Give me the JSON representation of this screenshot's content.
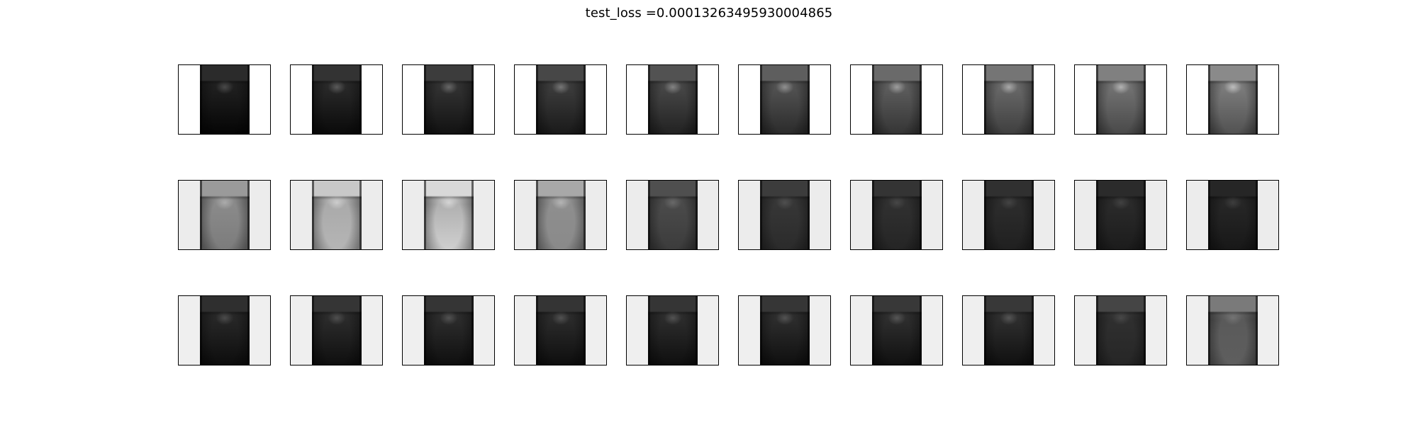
{
  "figure": {
    "title": "test_loss =0.00013263495930004865"
  },
  "grid": {
    "rows": [
      {
        "name": "row-1",
        "background": "#ffffff",
        "cells": [
          {
            "top": "#2b2b2b",
            "mid": "#1e1e1e",
            "bot": "#050505",
            "glow": 0.35
          },
          {
            "top": "#333333",
            "mid": "#272727",
            "bot": "#0a0a0a",
            "glow": 0.42
          },
          {
            "top": "#3c3c3c",
            "mid": "#303030",
            "bot": "#121212",
            "glow": 0.48
          },
          {
            "top": "#474747",
            "mid": "#3a3a3a",
            "bot": "#1a1a1a",
            "glow": 0.55
          },
          {
            "top": "#525252",
            "mid": "#454545",
            "bot": "#222222",
            "glow": 0.6
          },
          {
            "top": "#5e5e5e",
            "mid": "#505050",
            "bot": "#2b2b2b",
            "glow": 0.66
          },
          {
            "top": "#6a6a6a",
            "mid": "#5b5b5b",
            "bot": "#353535",
            "glow": 0.72
          },
          {
            "top": "#757575",
            "mid": "#666666",
            "bot": "#3f3f3f",
            "glow": 0.78
          },
          {
            "top": "#808080",
            "mid": "#707070",
            "bot": "#494949",
            "glow": 0.84
          },
          {
            "top": "#8a8a8a",
            "mid": "#7a7a7a",
            "bot": "#525252",
            "glow": 0.9
          }
        ]
      },
      {
        "name": "row-2",
        "background": "#ececec",
        "cells": [
          {
            "top": "#9a9a9a",
            "mid": "#8a8a8a",
            "bot": "#7c7c7c",
            "glow": 0.5
          },
          {
            "top": "#c8c8c8",
            "mid": "#aaaaaa",
            "bot": "#b5b5b5",
            "glow": 0.7
          },
          {
            "top": "#d8d8d8",
            "mid": "#b0b0b0",
            "bot": "#cfcfcf",
            "glow": 0.8
          },
          {
            "top": "#a8a8a8",
            "mid": "#8e8e8e",
            "bot": "#8a8a8a",
            "glow": 0.6
          },
          {
            "top": "#4f4f4f",
            "mid": "#4a4a4a",
            "bot": "#3c3c3c",
            "glow": 0.3
          },
          {
            "top": "#3c3c3c",
            "mid": "#363636",
            "bot": "#2b2b2b",
            "glow": 0.22
          },
          {
            "top": "#343434",
            "mid": "#303030",
            "bot": "#252525",
            "glow": 0.2
          },
          {
            "top": "#303030",
            "mid": "#2c2c2c",
            "bot": "#202020",
            "glow": 0.2
          },
          {
            "top": "#2b2b2b",
            "mid": "#2a2a2a",
            "bot": "#1c1c1c",
            "glow": 0.2
          },
          {
            "top": "#262626",
            "mid": "#262626",
            "bot": "#181818",
            "glow": 0.2
          }
        ]
      },
      {
        "name": "row-3",
        "background": "#efefef",
        "cells": [
          {
            "top": "#2f2f2f",
            "mid": "#262626",
            "bot": "#0d0d0d",
            "glow": 0.3
          },
          {
            "top": "#353535",
            "mid": "#2a2a2a",
            "bot": "#0f0f0f",
            "glow": 0.3
          },
          {
            "top": "#353535",
            "mid": "#2b2b2b",
            "bot": "#0f0f0f",
            "glow": 0.32
          },
          {
            "top": "#343434",
            "mid": "#2a2a2a",
            "bot": "#0e0e0e",
            "glow": 0.32
          },
          {
            "top": "#353535",
            "mid": "#2b2b2b",
            "bot": "#0f0f0f",
            "glow": 0.33
          },
          {
            "top": "#363636",
            "mid": "#2c2c2c",
            "bot": "#0f0f0f",
            "glow": 0.33
          },
          {
            "top": "#383838",
            "mid": "#2d2d2d",
            "bot": "#101010",
            "glow": 0.34
          },
          {
            "top": "#383838",
            "mid": "#2d2d2d",
            "bot": "#101010",
            "glow": 0.34
          },
          {
            "top": "#454545",
            "mid": "#2f2f2f",
            "bot": "#262626",
            "glow": 0.2
          },
          {
            "top": "#7a7a7a",
            "mid": "#5a5a5a",
            "bot": "#5e5e5e",
            "glow": 0.25
          }
        ]
      }
    ]
  }
}
